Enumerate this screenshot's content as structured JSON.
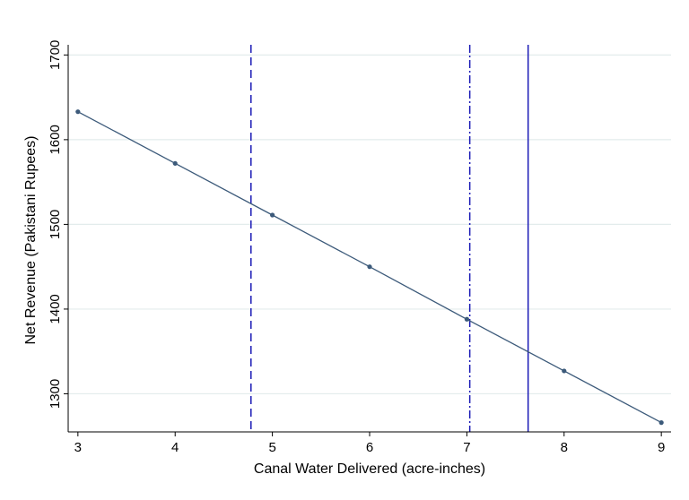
{
  "chart_data": {
    "type": "line",
    "title": "",
    "xlabel": "Canal Water Delivered (acre-inches)",
    "ylabel": "Net Revenue (Pakistani Rupees)",
    "xlim": [
      2.9,
      9.1
    ],
    "ylim": [
      1255,
      1712
    ],
    "x_ticks": [
      3,
      4,
      5,
      6,
      7,
      8,
      9
    ],
    "y_ticks": [
      1300,
      1400,
      1500,
      1600,
      1700
    ],
    "grid": "horizontal",
    "legend": "none",
    "series": [
      {
        "x": [
          3,
          4,
          5,
          6,
          7,
          8,
          9
        ],
        "y": [
          1633,
          1572,
          1511,
          1450,
          1388,
          1327,
          1266
        ],
        "color": "#3c5a7a",
        "marker": "circle"
      }
    ],
    "vertical_lines": [
      {
        "x": 4.78,
        "style": "dashed",
        "color": "#1a1ab5"
      },
      {
        "x": 7.03,
        "style": "dash-dot",
        "color": "#1a1ab5"
      },
      {
        "x": 7.63,
        "style": "solid",
        "color": "#1a1ab5"
      }
    ],
    "colors": {
      "grid": "#e3ecec",
      "axis": "#000000"
    }
  }
}
